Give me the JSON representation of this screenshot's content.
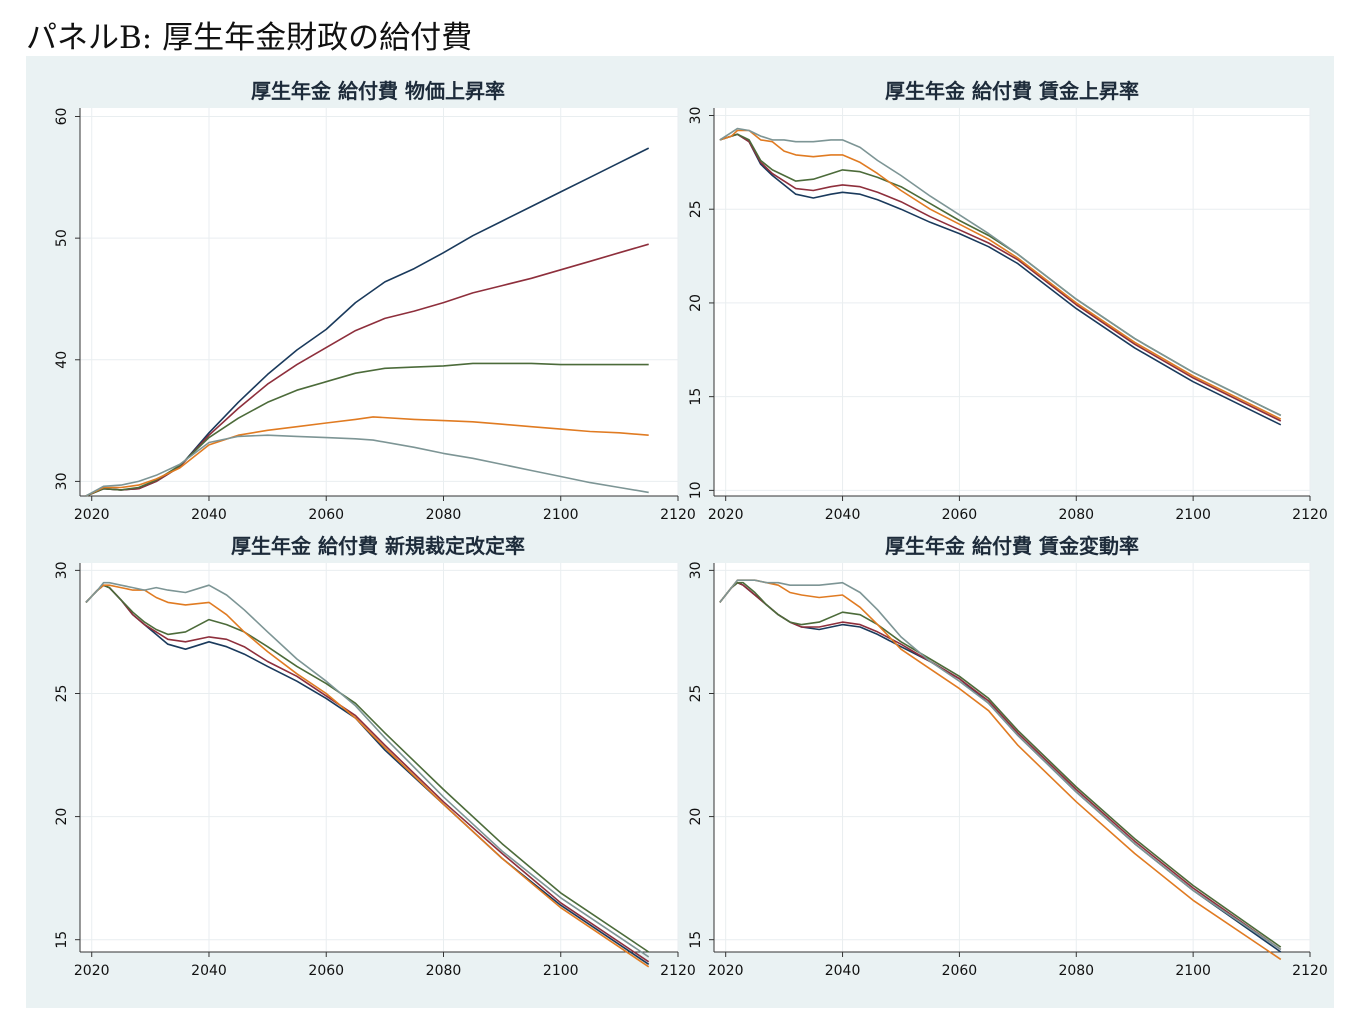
{
  "page": {
    "title": "パネルB:  厚生年金財政の給付費"
  },
  "chart_data": [
    {
      "type": "line",
      "title": "厚生年金 給付費 物価上昇率",
      "xlabel": "",
      "ylabel": "",
      "xlim": [
        2018,
        2120
      ],
      "ylim": [
        28.8,
        60.7
      ],
      "xticks": [
        2020,
        2040,
        2060,
        2080,
        2100,
        2120
      ],
      "yticks": [
        30,
        40,
        50,
        60
      ],
      "grid": true,
      "series": [
        {
          "color": "#1a3a5c",
          "x": [
            2019,
            2022,
            2025,
            2028,
            2031,
            2035,
            2040,
            2045,
            2050,
            2055,
            2060,
            2065,
            2070,
            2075,
            2080,
            2085,
            2090,
            2095,
            2100,
            2105,
            2110,
            2115
          ],
          "y": [
            28.8,
            29.4,
            29.3,
            29.4,
            30.0,
            31.2,
            34.0,
            36.5,
            38.8,
            40.8,
            42.5,
            44.7,
            46.4,
            47.5,
            48.8,
            50.2,
            51.4,
            52.6,
            53.8,
            55.0,
            56.2,
            57.4
          ]
        },
        {
          "color": "#8e2f3c",
          "x": [
            2019,
            2022,
            2025,
            2028,
            2031,
            2035,
            2040,
            2045,
            2050,
            2055,
            2060,
            2065,
            2070,
            2075,
            2080,
            2085,
            2090,
            2095,
            2100,
            2105,
            2110,
            2115
          ],
          "y": [
            28.8,
            29.4,
            29.3,
            29.4,
            30.0,
            31.2,
            33.8,
            36.0,
            38.0,
            39.6,
            41.0,
            42.4,
            43.4,
            44.0,
            44.7,
            45.5,
            46.1,
            46.7,
            47.4,
            48.1,
            48.8,
            49.5
          ]
        },
        {
          "color": "#4c6b3a",
          "x": [
            2019,
            2022,
            2025,
            2028,
            2031,
            2035,
            2040,
            2045,
            2050,
            2055,
            2060,
            2065,
            2070,
            2075,
            2080,
            2085,
            2090,
            2095,
            2100,
            2105,
            2110,
            2115
          ],
          "y": [
            28.8,
            29.4,
            29.3,
            29.5,
            30.1,
            31.3,
            33.6,
            35.2,
            36.5,
            37.5,
            38.2,
            38.9,
            39.3,
            39.4,
            39.5,
            39.7,
            39.7,
            39.7,
            39.6,
            39.6,
            39.6,
            39.6
          ]
        },
        {
          "color": "#e07b22",
          "x": [
            2019,
            2022,
            2025,
            2028,
            2031,
            2035,
            2040,
            2045,
            2050,
            2055,
            2060,
            2065,
            2068,
            2075,
            2080,
            2085,
            2090,
            2095,
            2100,
            2105,
            2110,
            2115
          ],
          "y": [
            28.8,
            29.5,
            29.5,
            29.7,
            30.2,
            31.1,
            33.0,
            33.8,
            34.2,
            34.5,
            34.8,
            35.1,
            35.3,
            35.1,
            35.0,
            34.9,
            34.7,
            34.5,
            34.3,
            34.1,
            34.0,
            33.8
          ]
        },
        {
          "color": "#7d9595",
          "x": [
            2019,
            2022,
            2025,
            2028,
            2031,
            2035,
            2040,
            2045,
            2050,
            2055,
            2060,
            2065,
            2068,
            2075,
            2080,
            2085,
            2090,
            2095,
            2100,
            2105,
            2110,
            2115
          ],
          "y": [
            28.8,
            29.6,
            29.7,
            30.0,
            30.5,
            31.4,
            33.2,
            33.7,
            33.8,
            33.7,
            33.6,
            33.5,
            33.4,
            32.8,
            32.3,
            31.9,
            31.4,
            30.9,
            30.4,
            29.9,
            29.5,
            29.1
          ]
        }
      ]
    },
    {
      "type": "line",
      "title": "厚生年金 給付費 賃金上昇率",
      "xlabel": "",
      "ylabel": "",
      "xlim": [
        2018,
        2120
      ],
      "ylim": [
        9.7,
        30.4
      ],
      "xticks": [
        2020,
        2040,
        2060,
        2080,
        2100,
        2120
      ],
      "yticks": [
        10,
        15,
        20,
        25,
        30
      ],
      "grid": true,
      "series": [
        {
          "color": "#1a3a5c",
          "x": [
            2019,
            2021,
            2022,
            2024,
            2026,
            2028,
            2030,
            2032,
            2035,
            2038,
            2040,
            2043,
            2046,
            2050,
            2055,
            2060,
            2065,
            2070,
            2080,
            2090,
            2100,
            2115
          ],
          "y": [
            28.7,
            28.9,
            29.0,
            28.6,
            27.4,
            26.8,
            26.3,
            25.8,
            25.6,
            25.8,
            25.9,
            25.8,
            25.5,
            25.0,
            24.3,
            23.7,
            23.0,
            22.1,
            19.7,
            17.6,
            15.8,
            13.5
          ]
        },
        {
          "color": "#8e2f3c",
          "x": [
            2019,
            2021,
            2022,
            2024,
            2026,
            2028,
            2030,
            2032,
            2035,
            2038,
            2040,
            2043,
            2046,
            2050,
            2055,
            2060,
            2065,
            2070,
            2080,
            2090,
            2100,
            2115
          ],
          "y": [
            28.7,
            28.9,
            29.0,
            28.6,
            27.5,
            26.9,
            26.5,
            26.1,
            26.0,
            26.2,
            26.3,
            26.2,
            25.9,
            25.4,
            24.6,
            23.9,
            23.2,
            22.3,
            19.9,
            17.8,
            16.0,
            13.7
          ]
        },
        {
          "color": "#4c6b3a",
          "x": [
            2019,
            2021,
            2022,
            2024,
            2026,
            2028,
            2030,
            2032,
            2035,
            2038,
            2040,
            2043,
            2046,
            2050,
            2055,
            2060,
            2065,
            2070,
            2080,
            2090,
            2100,
            2115
          ],
          "y": [
            28.7,
            28.9,
            29.0,
            28.7,
            27.6,
            27.1,
            26.8,
            26.5,
            26.6,
            26.9,
            27.1,
            27.0,
            26.7,
            26.2,
            25.3,
            24.4,
            23.6,
            22.6,
            20.2,
            18.1,
            16.3,
            14.0
          ]
        },
        {
          "color": "#e07b22",
          "x": [
            2019,
            2021,
            2022,
            2024,
            2026,
            2028,
            2030,
            2032,
            2035,
            2038,
            2040,
            2043,
            2046,
            2050,
            2055,
            2060,
            2065,
            2070,
            2080,
            2090,
            2100,
            2115
          ],
          "y": [
            28.7,
            28.9,
            29.2,
            29.2,
            28.7,
            28.6,
            28.1,
            27.9,
            27.8,
            27.9,
            27.9,
            27.5,
            26.9,
            26.0,
            25.0,
            24.2,
            23.4,
            22.4,
            20.0,
            17.9,
            16.1,
            13.8
          ]
        },
        {
          "color": "#7d9595",
          "x": [
            2019,
            2021,
            2022,
            2024,
            2026,
            2028,
            2030,
            2032,
            2035,
            2038,
            2040,
            2043,
            2046,
            2050,
            2055,
            2060,
            2065,
            2070,
            2080,
            2090,
            2100,
            2115
          ],
          "y": [
            28.7,
            29.1,
            29.3,
            29.2,
            28.9,
            28.7,
            28.7,
            28.6,
            28.6,
            28.7,
            28.7,
            28.3,
            27.6,
            26.8,
            25.7,
            24.7,
            23.7,
            22.6,
            20.2,
            18.1,
            16.3,
            14.0
          ]
        }
      ]
    },
    {
      "type": "line",
      "title": "厚生年金 給付費 新規裁定改定率",
      "xlabel": "",
      "ylabel": "",
      "xlim": [
        2018,
        2120
      ],
      "ylim": [
        14.5,
        30.3
      ],
      "xticks": [
        2020,
        2040,
        2060,
        2080,
        2100,
        2120
      ],
      "yticks": [
        15,
        20,
        25,
        30
      ],
      "grid": true,
      "series": [
        {
          "color": "#1a3a5c",
          "x": [
            2019,
            2021,
            2022,
            2023,
            2025,
            2027,
            2029,
            2031,
            2033,
            2036,
            2040,
            2043,
            2046,
            2050,
            2055,
            2060,
            2065,
            2070,
            2080,
            2090,
            2100,
            2115
          ],
          "y": [
            28.7,
            29.2,
            29.4,
            29.3,
            28.8,
            28.2,
            27.8,
            27.4,
            27.0,
            26.8,
            27.1,
            26.9,
            26.6,
            26.1,
            25.5,
            24.8,
            24.0,
            22.7,
            20.5,
            18.3,
            16.4,
            14.0
          ]
        },
        {
          "color": "#8e2f3c",
          "x": [
            2019,
            2021,
            2022,
            2023,
            2025,
            2027,
            2029,
            2031,
            2033,
            2036,
            2040,
            2043,
            2046,
            2050,
            2055,
            2060,
            2065,
            2070,
            2080,
            2090,
            2100,
            2115
          ],
          "y": [
            28.7,
            29.2,
            29.4,
            29.3,
            28.8,
            28.2,
            27.8,
            27.5,
            27.2,
            27.1,
            27.3,
            27.2,
            26.9,
            26.3,
            25.7,
            24.9,
            24.1,
            22.9,
            20.6,
            18.5,
            16.5,
            14.1
          ]
        },
        {
          "color": "#4c6b3a",
          "x": [
            2019,
            2021,
            2022,
            2023,
            2025,
            2027,
            2029,
            2031,
            2033,
            2036,
            2040,
            2043,
            2046,
            2050,
            2055,
            2060,
            2065,
            2070,
            2080,
            2090,
            2100,
            2115
          ],
          "y": [
            28.7,
            29.2,
            29.4,
            29.3,
            28.8,
            28.3,
            27.9,
            27.6,
            27.4,
            27.5,
            28.0,
            27.8,
            27.5,
            26.9,
            26.1,
            25.4,
            24.6,
            23.4,
            21.1,
            18.9,
            16.9,
            14.5
          ]
        },
        {
          "color": "#e07b22",
          "x": [
            2019,
            2021,
            2022,
            2023,
            2025,
            2027,
            2029,
            2031,
            2033,
            2036,
            2040,
            2043,
            2046,
            2050,
            2055,
            2060,
            2065,
            2070,
            2080,
            2090,
            2100,
            2115
          ],
          "y": [
            28.7,
            29.2,
            29.4,
            29.4,
            29.3,
            29.2,
            29.2,
            28.9,
            28.7,
            28.6,
            28.7,
            28.2,
            27.5,
            26.7,
            25.8,
            25.0,
            24.0,
            22.8,
            20.5,
            18.3,
            16.3,
            13.9
          ]
        },
        {
          "color": "#7d9595",
          "x": [
            2019,
            2021,
            2022,
            2023,
            2025,
            2027,
            2029,
            2031,
            2033,
            2036,
            2040,
            2043,
            2046,
            2050,
            2055,
            2060,
            2065,
            2070,
            2080,
            2090,
            2100,
            2115
          ],
          "y": [
            28.7,
            29.2,
            29.5,
            29.5,
            29.4,
            29.3,
            29.2,
            29.3,
            29.2,
            29.1,
            29.4,
            29.0,
            28.4,
            27.5,
            26.4,
            25.5,
            24.5,
            23.2,
            20.8,
            18.6,
            16.7,
            14.3
          ]
        }
      ]
    },
    {
      "type": "line",
      "title": "厚生年金 給付費 賃金変動率",
      "xlabel": "",
      "ylabel": "",
      "xlim": [
        2018,
        2120
      ],
      "ylim": [
        14.5,
        30.3
      ],
      "xticks": [
        2020,
        2040,
        2060,
        2080,
        2100,
        2120
      ],
      "yticks": [
        15,
        20,
        25,
        30
      ],
      "grid": true,
      "series": [
        {
          "color": "#1a3a5c",
          "x": [
            2019,
            2021,
            2022,
            2023,
            2025,
            2027,
            2029,
            2031,
            2033,
            2036,
            2040,
            2043,
            2046,
            2050,
            2055,
            2060,
            2065,
            2070,
            2080,
            2090,
            2100,
            2115
          ],
          "y": [
            28.7,
            29.3,
            29.5,
            29.4,
            29.0,
            28.6,
            28.2,
            27.9,
            27.7,
            27.6,
            27.8,
            27.7,
            27.4,
            26.9,
            26.3,
            25.6,
            24.6,
            23.3,
            21.0,
            18.9,
            17.0,
            14.5
          ]
        },
        {
          "color": "#8e2f3c",
          "x": [
            2019,
            2021,
            2022,
            2023,
            2025,
            2027,
            2029,
            2031,
            2033,
            2036,
            2040,
            2043,
            2046,
            2050,
            2055,
            2060,
            2065,
            2070,
            2080,
            2090,
            2100,
            2115
          ],
          "y": [
            28.7,
            29.3,
            29.5,
            29.4,
            29.0,
            28.6,
            28.2,
            27.9,
            27.7,
            27.7,
            27.9,
            27.8,
            27.5,
            27.0,
            26.3,
            25.6,
            24.7,
            23.4,
            21.1,
            19.0,
            17.1,
            14.6
          ]
        },
        {
          "color": "#4c6b3a",
          "x": [
            2019,
            2021,
            2022,
            2023,
            2025,
            2027,
            2029,
            2031,
            2033,
            2036,
            2040,
            2043,
            2046,
            2050,
            2055,
            2060,
            2065,
            2070,
            2080,
            2090,
            2100,
            2115
          ],
          "y": [
            28.7,
            29.3,
            29.5,
            29.5,
            29.1,
            28.6,
            28.2,
            27.9,
            27.8,
            27.9,
            28.3,
            28.2,
            27.8,
            27.1,
            26.4,
            25.7,
            24.8,
            23.5,
            21.2,
            19.1,
            17.2,
            14.7
          ]
        },
        {
          "color": "#e07b22",
          "x": [
            2019,
            2021,
            2022,
            2023,
            2025,
            2027,
            2029,
            2031,
            2033,
            2036,
            2040,
            2043,
            2046,
            2050,
            2055,
            2060,
            2065,
            2070,
            2080,
            2090,
            2100,
            2115
          ],
          "y": [
            28.7,
            29.3,
            29.6,
            29.6,
            29.6,
            29.5,
            29.4,
            29.1,
            29.0,
            28.9,
            29.0,
            28.5,
            27.8,
            26.8,
            26.0,
            25.2,
            24.3,
            22.9,
            20.6,
            18.5,
            16.6,
            14.2
          ]
        },
        {
          "color": "#7d9595",
          "x": [
            2019,
            2021,
            2022,
            2023,
            2025,
            2027,
            2029,
            2031,
            2033,
            2036,
            2040,
            2043,
            2046,
            2050,
            2055,
            2060,
            2065,
            2070,
            2080,
            2090,
            2100,
            2115
          ],
          "y": [
            28.7,
            29.3,
            29.6,
            29.6,
            29.6,
            29.5,
            29.5,
            29.4,
            29.4,
            29.4,
            29.5,
            29.1,
            28.4,
            27.3,
            26.3,
            25.5,
            24.6,
            23.3,
            21.0,
            18.9,
            17.0,
            14.6
          ]
        }
      ]
    }
  ]
}
